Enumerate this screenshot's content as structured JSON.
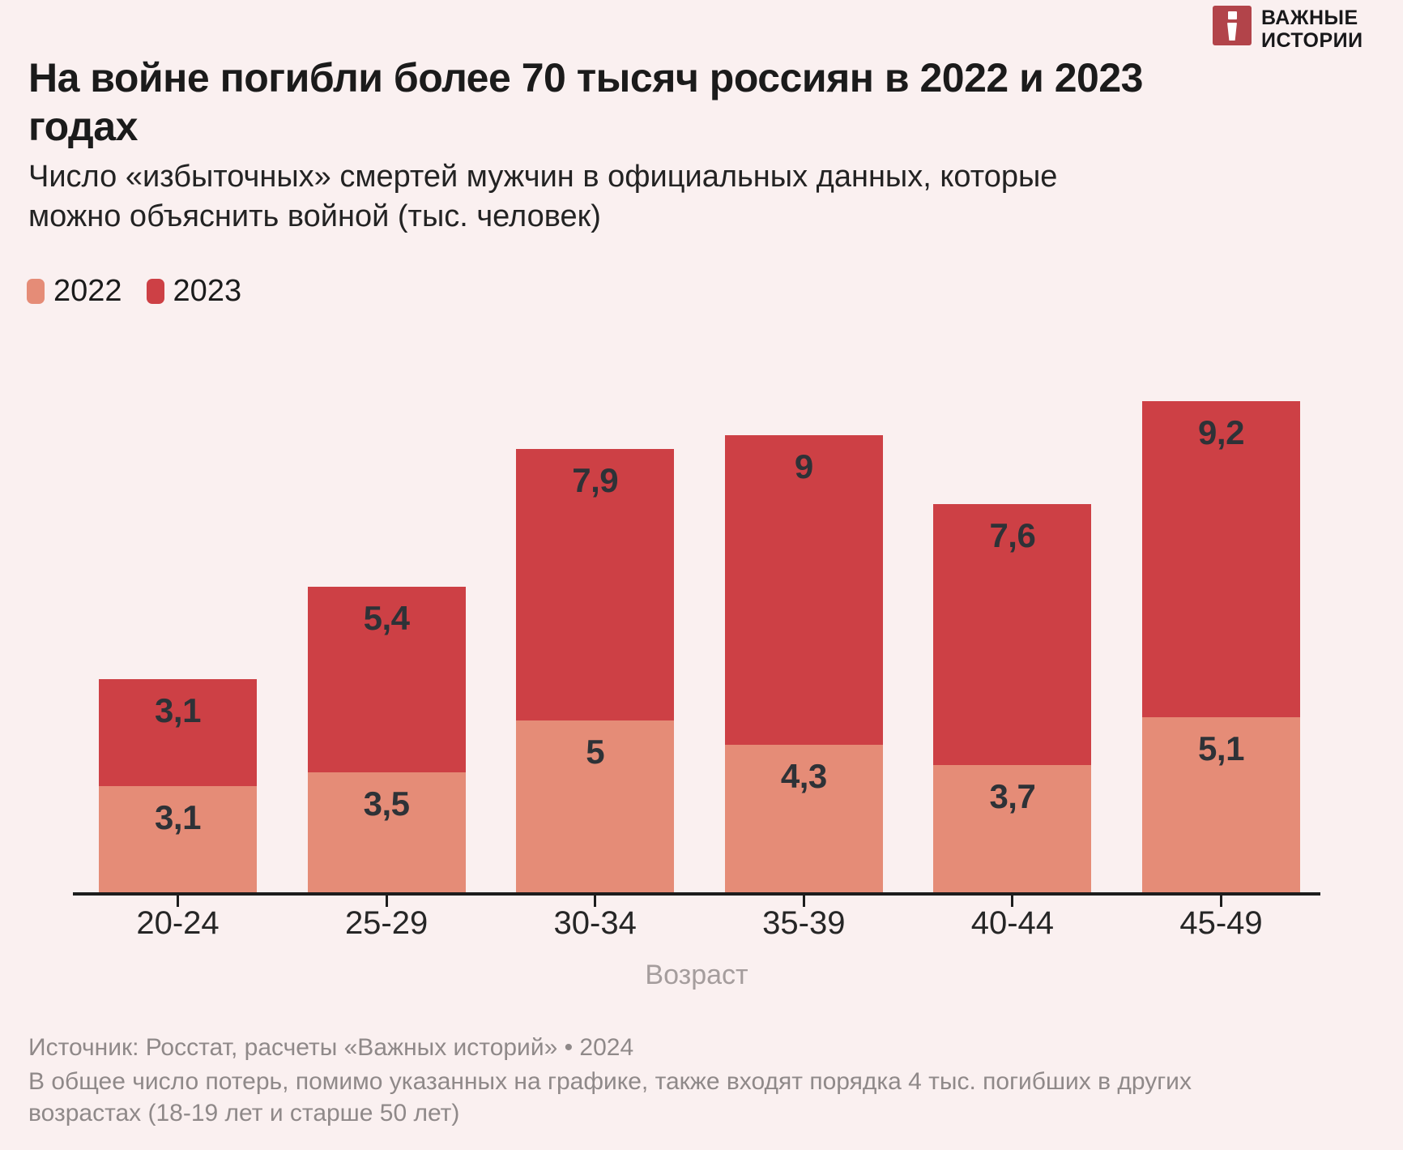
{
  "logo": {
    "line1": "ВАЖНЫЕ",
    "line2": "ИСТОРИИ",
    "square_color": "#b2444a"
  },
  "header": {
    "title": "На войне погибли более 70 тысяч россиян в 2022 и 2023\nгодах",
    "subtitle": "Число «избыточных» смертей мужчин в официальных данных, которые\nможно объяснить войной (тыс. человек)"
  },
  "chart_data": {
    "type": "bar",
    "stacked": true,
    "categories": [
      "20-24",
      "25-29",
      "30-34",
      "35-39",
      "40-44",
      "45-49"
    ],
    "series": [
      {
        "name": "2022",
        "color": "#e58c77",
        "values": [
          3.1,
          3.5,
          5,
          4.3,
          3.7,
          5.1
        ],
        "labels": [
          "3,1",
          "3,5",
          "5",
          "4,3",
          "3,7",
          "5,1"
        ]
      },
      {
        "name": "2023",
        "color": "#cd4045",
        "values": [
          3.1,
          5.4,
          7.9,
          9,
          7.6,
          9.2
        ],
        "labels": [
          "3,1",
          "5,4",
          "7,9",
          "9",
          "7,6",
          "9,2"
        ]
      }
    ],
    "xlabel": "Возраст",
    "ylabel": "",
    "ylim": [
      0,
      14.3
    ],
    "grid": false,
    "legend_position": "top-left",
    "value_labels_shown": true
  },
  "footer": {
    "source": "Источник: Росстат, расчеты «Важных историй» • 2024",
    "note": "В общее число потерь, помимо указанных на графике, также входят порядка 4 тыс. погибших в других\nвозрастах (18-19 лет и старше 50 лет)"
  },
  "colors": {
    "background": "#faf0f0",
    "axis": "#1d1d1d",
    "value_label": "#2e3237",
    "tick_label": "#262626",
    "axis_title": "#a59d9d",
    "footer_text": "#8f8989"
  }
}
